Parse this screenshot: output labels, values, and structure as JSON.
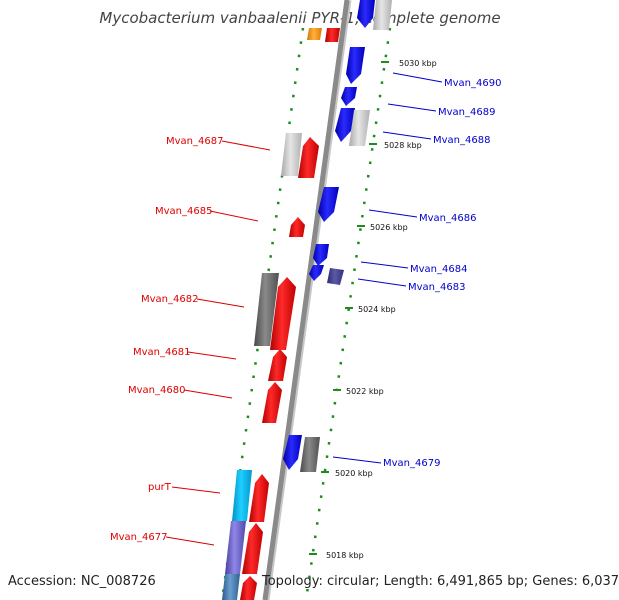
{
  "title": "Mycobacterium vanbaalenii PYR-1, complete genome",
  "footer": {
    "accession": "Accession: NC_008726",
    "topology": "Topology: circular; Length: 6,491,865 bp; Genes: 6,037"
  },
  "colors": {
    "forward": "#ee0000",
    "reverse": "#0000ee",
    "backbone": "#8a8a8a",
    "ticks": "#1c8c1c",
    "forward_label": "#dd0000",
    "reverse_label": "#0000cc"
  },
  "scale_labels": [
    "5030 kbp",
    "5028 kbp",
    "5026 kbp",
    "5024 kbp",
    "5022 kbp",
    "5020 kbp",
    "5018 kbp"
  ],
  "forward_labels": [
    "Mvan_4687",
    "Mvan_4685",
    "Mvan_4682",
    "Mvan_4681",
    "Mvan_4680",
    "purT",
    "Mvan_4677"
  ],
  "reverse_labels": [
    "Mvan_4690",
    "Mvan_4689",
    "Mvan_4688",
    "Mvan_4686",
    "Mvan_4684",
    "Mvan_4683",
    "Mvan_4679"
  ]
}
